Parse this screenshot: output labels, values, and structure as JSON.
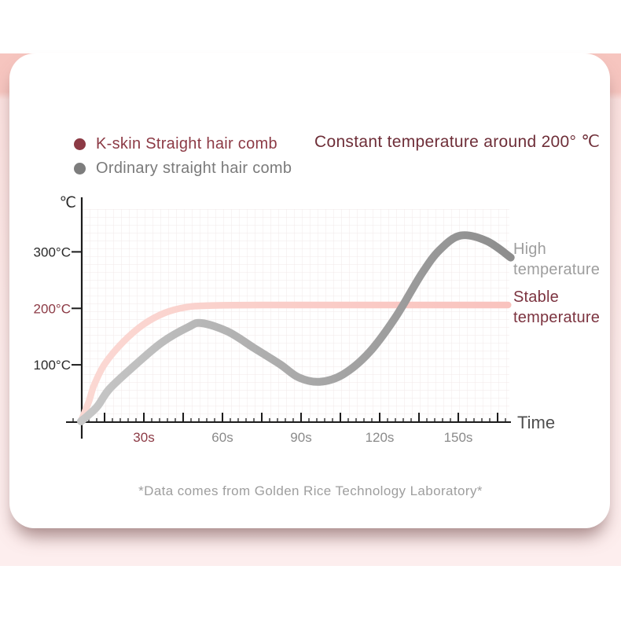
{
  "header": {
    "headline": "Constant temperature around 200° ℃"
  },
  "legend": {
    "items": [
      {
        "label": "K-skin Straight hair comb",
        "color": "#8c3a45"
      },
      {
        "label": "Ordinary straight hair comb",
        "color": "#7d7d7d"
      }
    ]
  },
  "footer": {
    "footnote": "*Data comes from Golden Rice Technology Laboratory*"
  },
  "colors": {
    "maroon_text": "#8c3a45",
    "dark_maroon_text": "#6e2e38",
    "gray_text": "#8a8a8a",
    "light_gray_text": "#9e9e9e",
    "axis": "#1c1c1c",
    "grid_line": "#f2e9e9",
    "pink_band_top": "#f6c5bf",
    "pink_band_bottom": "#fdeeee",
    "stable_curve": "#f9c3be",
    "high_curve": "#8d8d8d"
  },
  "chart_data": {
    "type": "line",
    "title": "Constant temperature around 200° ℃",
    "xlabel": "Time",
    "ylabel": "℃",
    "x_unit": "seconds",
    "xlim": [
      0,
      170
    ],
    "ylim": [
      0,
      380
    ],
    "grid": true,
    "legend_position": "top-left",
    "x_ticks": [
      {
        "label": "30s",
        "value": 30,
        "color": "#8c3a45"
      },
      {
        "label": "60s",
        "value": 60,
        "color": "#8a8a8a"
      },
      {
        "label": "90s",
        "value": 90,
        "color": "#8a8a8a"
      },
      {
        "label": "120s",
        "value": 120,
        "color": "#8a8a8a"
      },
      {
        "label": "150s",
        "value": 150,
        "color": "#8a8a8a"
      }
    ],
    "y_ticks": [
      {
        "label": "100°C",
        "value": 100,
        "color": "#2a2a2a"
      },
      {
        "label": "200°C",
        "value": 200,
        "color": "#8c3a45"
      },
      {
        "label": "300°C",
        "value": 300,
        "color": "#2a2a2a"
      }
    ],
    "series": [
      {
        "name": "K-skin Straight hair comb",
        "behavior": "Stable temperature",
        "approx_constant_c": 205,
        "dom_name": "kskin-curve",
        "stroke_width": 8.5,
        "gradient": [
          "#fbd8d3",
          "#f9c3be"
        ],
        "points": [
          [
            6,
            0
          ],
          [
            9,
            35
          ],
          [
            11,
            64
          ],
          [
            15,
            101
          ],
          [
            22,
            140
          ],
          [
            30,
            172
          ],
          [
            38,
            192
          ],
          [
            46,
            202
          ],
          [
            55,
            205
          ],
          [
            75,
            206
          ],
          [
            105,
            206
          ],
          [
            140,
            206
          ],
          [
            169,
            206
          ]
        ]
      },
      {
        "name": "Ordinary straight hair comb",
        "behavior": "High temperature",
        "peak_c": 329,
        "dom_name": "ordinary-curve",
        "stroke_width": 10,
        "gradient": [
          "#c7c7c7",
          "#8d8d8d"
        ],
        "points": [
          [
            6,
            0
          ],
          [
            12,
            25
          ],
          [
            17,
            58
          ],
          [
            27,
            101
          ],
          [
            37,
            140
          ],
          [
            47,
            167
          ],
          [
            52,
            174
          ],
          [
            62,
            159
          ],
          [
            72,
            130
          ],
          [
            82,
            101
          ],
          [
            89,
            78
          ],
          [
            97,
            70
          ],
          [
            106,
            83
          ],
          [
            116,
            122
          ],
          [
            126,
            184
          ],
          [
            136,
            261
          ],
          [
            143,
            304
          ],
          [
            151,
            329
          ],
          [
            161,
            319
          ],
          [
            170,
            290
          ]
        ]
      }
    ],
    "annotations": [
      {
        "text": "High temperature",
        "series": "Ordinary straight hair comb",
        "color": "#9e9e9e"
      },
      {
        "text": "Stable temperature",
        "series": "K-skin Straight hair comb",
        "color": "#7c3440"
      }
    ]
  }
}
